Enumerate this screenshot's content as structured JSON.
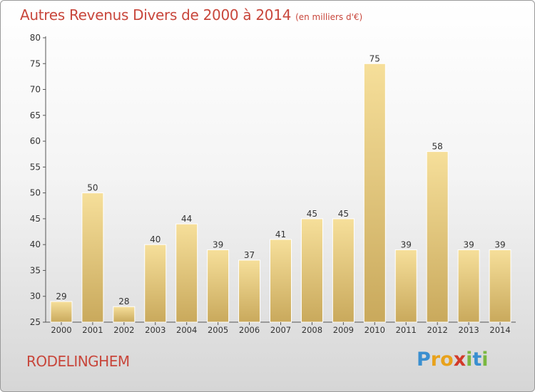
{
  "header": {
    "title": "Autres Revenus Divers de 2000 à 2014",
    "unit": "(en milliers d'€)"
  },
  "footer": {
    "commune": "RODELINGHEM",
    "logo": {
      "letters": [
        "P",
        "r",
        "o",
        "x",
        "i",
        "t",
        "i"
      ],
      "colors": [
        "#3a8fd0",
        "#e8a21c",
        "#e8a21c",
        "#d23a2a",
        "#7ab840",
        "#3a8fd0",
        "#7ab840"
      ]
    }
  },
  "colors": {
    "bar_light": "#f6df9a",
    "bar_dark": "#c9a95c",
    "axis": "#555555",
    "grid": "#cccccc",
    "text": "#333333"
  },
  "chart_data": {
    "type": "bar",
    "categories": [
      "2000",
      "2001",
      "2002",
      "2003",
      "2004",
      "2005",
      "2006",
      "2007",
      "2008",
      "2009",
      "2010",
      "2011",
      "2012",
      "2013",
      "2014"
    ],
    "values": [
      29,
      50,
      28,
      40,
      44,
      39,
      37,
      41,
      45,
      45,
      75,
      39,
      58,
      39,
      39
    ],
    "data_labels": [
      "29",
      "50",
      "28",
      "40",
      "44",
      "39",
      "37",
      "41",
      "45",
      "45",
      "75",
      "39",
      "58",
      "39",
      "39"
    ],
    "title": "Autres Revenus Divers de 2000 à 2014",
    "xlabel": "",
    "ylabel": "",
    "ylim": [
      25,
      80
    ],
    "yticks": [
      25,
      30,
      35,
      40,
      45,
      50,
      55,
      60,
      65,
      70,
      75,
      80
    ],
    "grid": false
  }
}
